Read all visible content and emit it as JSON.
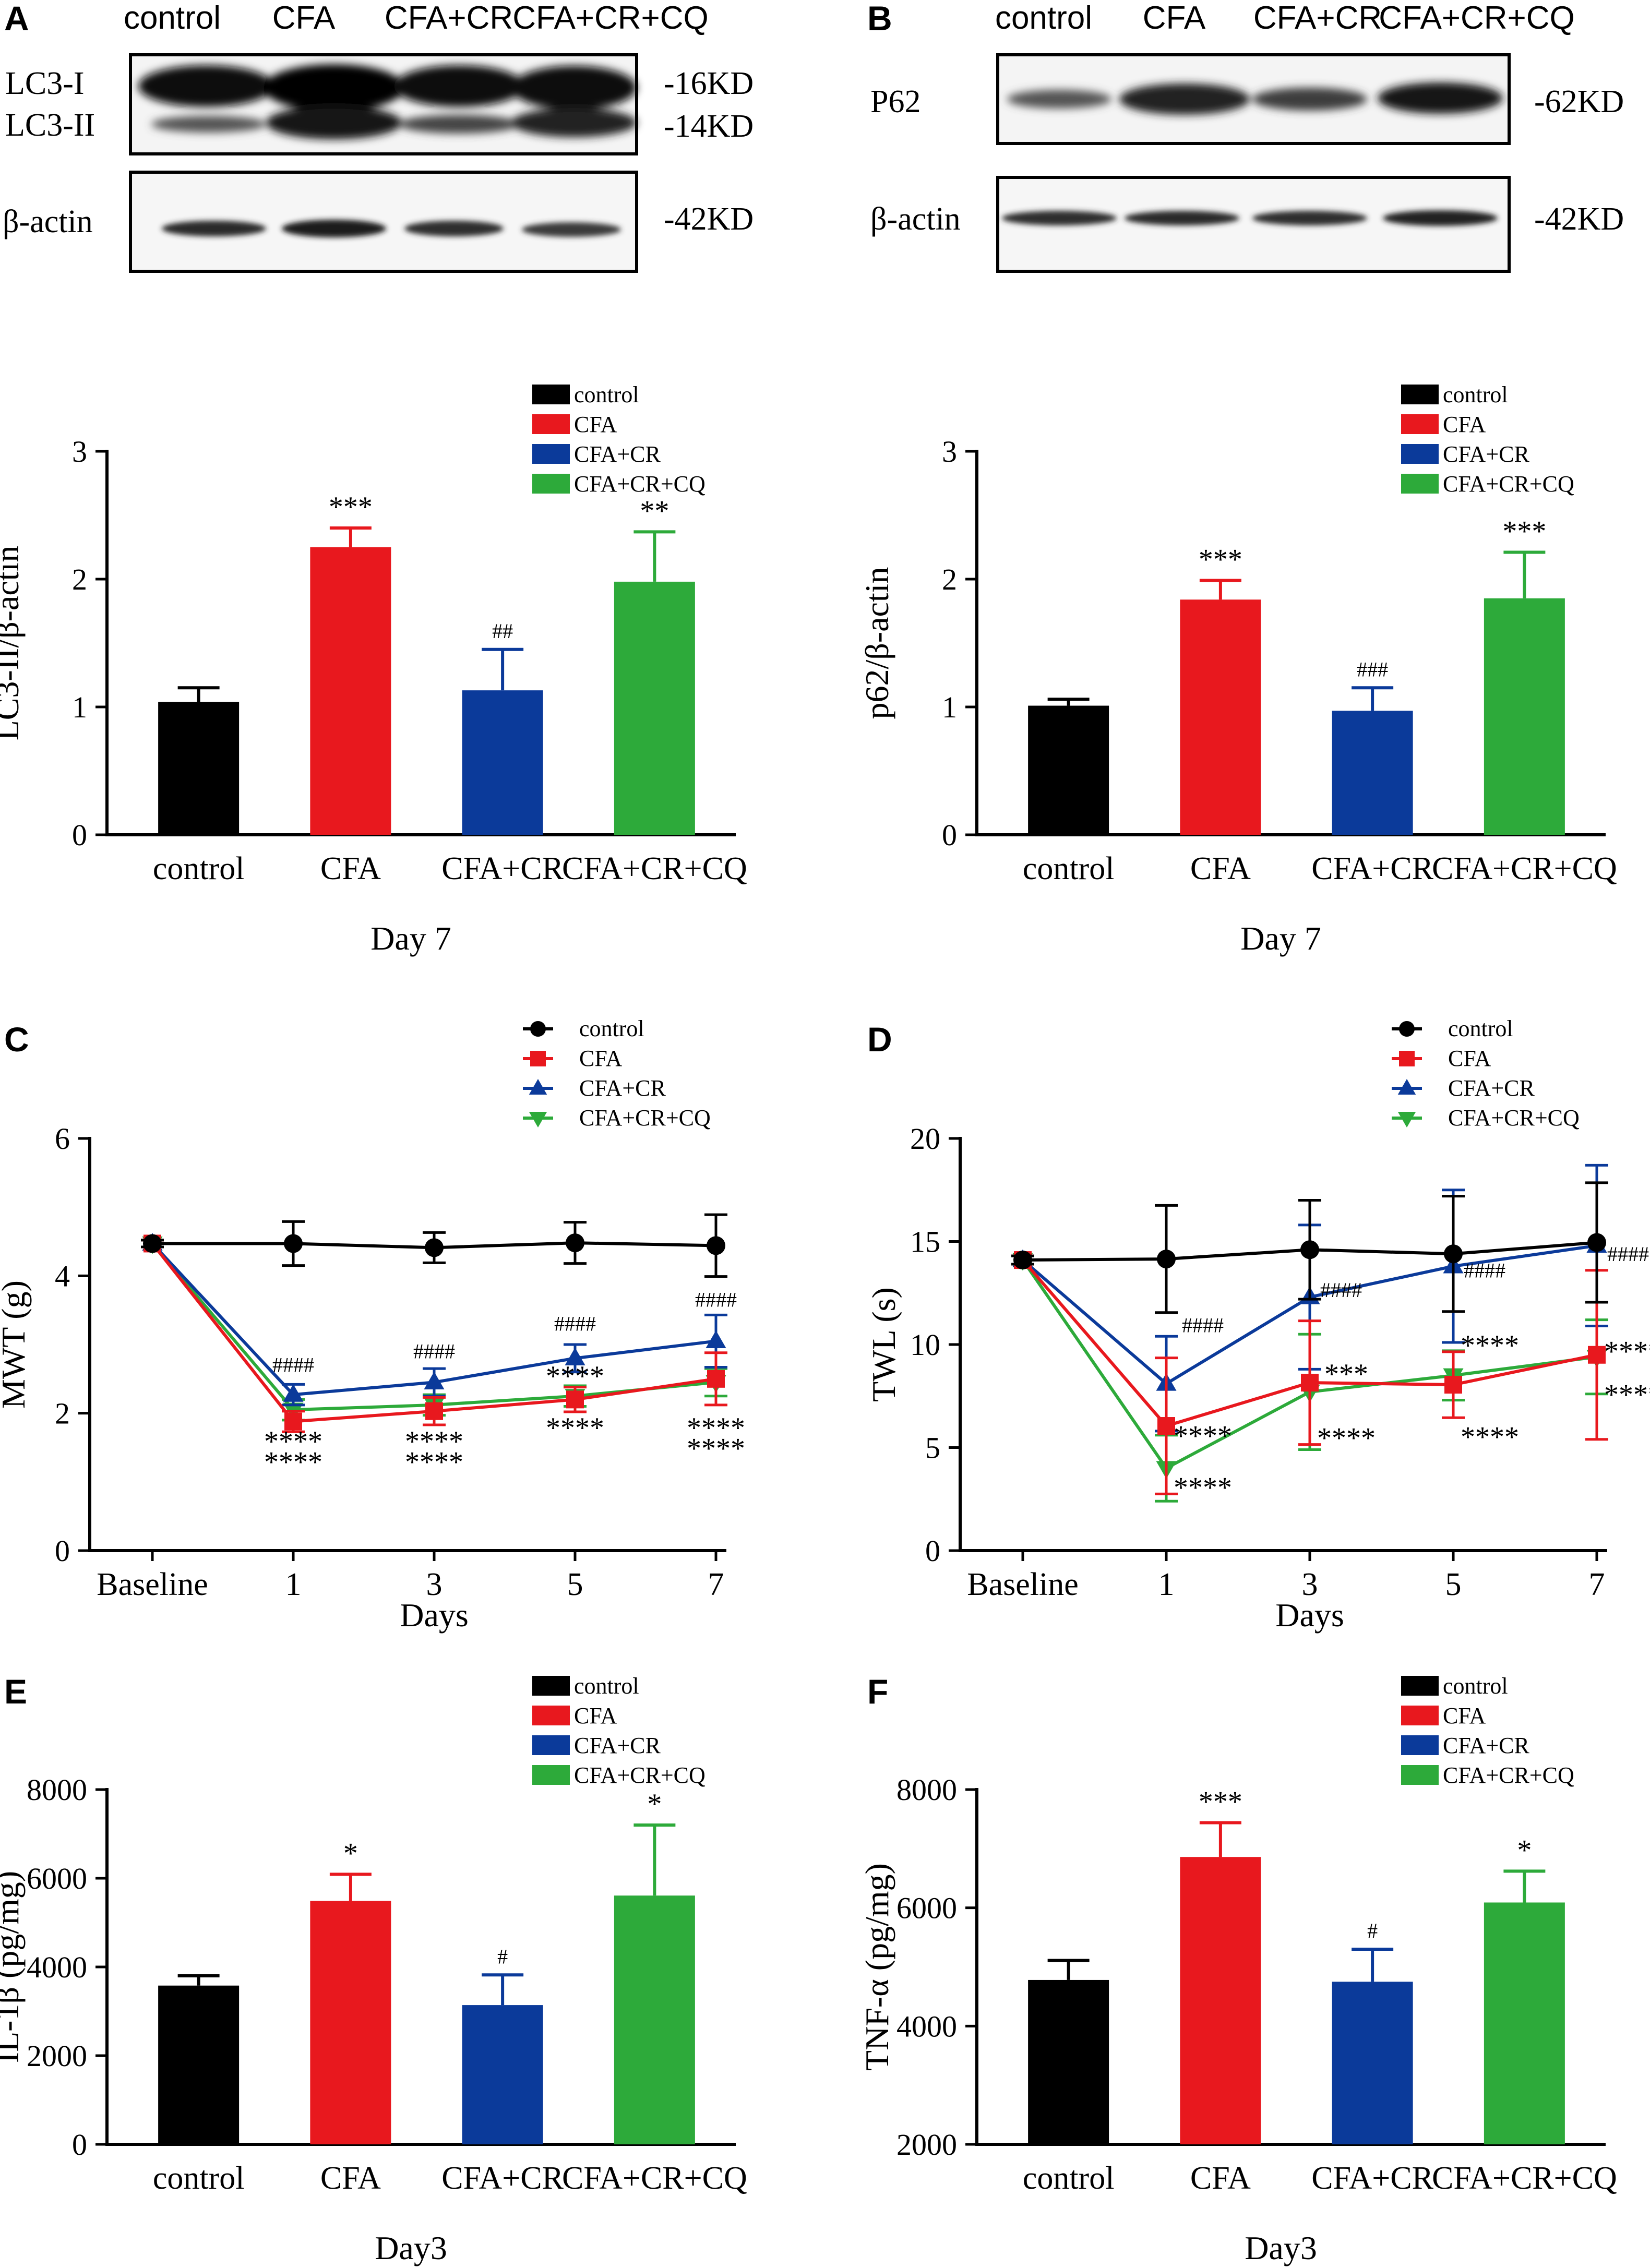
{
  "colors": {
    "control": "#000000",
    "CFA": "#e8181e",
    "CFA+CR": "#0b3a9a",
    "CFA+CR+CQ": "#2daa3a"
  },
  "blots": [
    {
      "panel": "A",
      "lanes": [
        "control",
        "CFA",
        "CFA+CR",
        "CFA+CR+CQ"
      ],
      "top_labels": [
        "LC3-I",
        "LC3-II"
      ],
      "top_kd": [
        "-16KD",
        "-14KD"
      ],
      "bottom_label": "β-actin",
      "bottom_kd": "-42KD"
    },
    {
      "panel": "B",
      "lanes": [
        "control",
        "CFA",
        "CFA+CR",
        "CFA+CR+CQ"
      ],
      "top_labels": [
        "P62"
      ],
      "top_kd": [
        "-62KD"
      ],
      "bottom_label": "β-actin",
      "bottom_kd": "-42KD"
    }
  ],
  "chart_data": [
    {
      "panel": "A",
      "type": "bar",
      "categories": [
        "control",
        "CFA",
        "CFA+CR",
        "CFA+CR+CQ"
      ],
      "values": [
        1.04,
        2.25,
        1.13,
        1.98
      ],
      "errors": [
        0.11,
        0.15,
        0.32,
        0.39
      ],
      "annotations": [
        "",
        "***",
        "##",
        "**"
      ],
      "ylabel": "LC3-II/β-actin",
      "xlabel": "Day 7",
      "ylim": [
        0,
        3
      ],
      "yticks": [
        0,
        1,
        2,
        3
      ],
      "legend": [
        "control",
        "CFA",
        "CFA+CR",
        "CFA+CR+CQ"
      ]
    },
    {
      "panel": "B",
      "type": "bar",
      "categories": [
        "control",
        "CFA",
        "CFA+CR",
        "CFA+CR+CQ"
      ],
      "values": [
        1.01,
        1.84,
        0.97,
        1.85
      ],
      "errors": [
        0.05,
        0.15,
        0.18,
        0.36
      ],
      "annotations": [
        "",
        "***",
        "###",
        "***"
      ],
      "ylabel": "p62/β-actin",
      "xlabel": "Day 7",
      "ylim": [
        0,
        3
      ],
      "yticks": [
        0,
        1,
        2,
        3
      ],
      "legend": [
        "control",
        "CFA",
        "CFA+CR",
        "CFA+CR+CQ"
      ]
    },
    {
      "panel": "C",
      "type": "line",
      "x": [
        "Baseline",
        "1",
        "3",
        "5",
        "7"
      ],
      "series": [
        {
          "name": "control",
          "marker": "circle",
          "values": [
            4.47,
            4.47,
            4.41,
            4.48,
            4.44
          ],
          "errors": [
            0.05,
            0.32,
            0.22,
            0.3,
            0.45
          ]
        },
        {
          "name": "CFA",
          "marker": "square",
          "values": [
            4.47,
            1.88,
            2.03,
            2.2,
            2.5
          ],
          "errors": [
            0.05,
            0.15,
            0.2,
            0.18,
            0.38
          ]
        },
        {
          "name": "CFA+CR",
          "marker": "triangle",
          "values": [
            4.47,
            2.27,
            2.45,
            2.8,
            3.05
          ],
          "errors": [
            0.05,
            0.15,
            0.2,
            0.2,
            0.38
          ]
        },
        {
          "name": "CFA+CR+CQ",
          "marker": "triangle-down",
          "values": [
            4.47,
            2.05,
            2.12,
            2.25,
            2.45
          ],
          "errors": [
            0.05,
            0.15,
            0.15,
            0.15,
            0.2
          ]
        }
      ],
      "annotations": [
        {
          "x": "1",
          "y": 2.6,
          "text": "####"
        },
        {
          "x": "1",
          "y": 1.45,
          "text": "****"
        },
        {
          "x": "1",
          "y": 1.15,
          "text": "****"
        },
        {
          "x": "3",
          "y": 2.8,
          "text": "####"
        },
        {
          "x": "3",
          "y": 1.45,
          "text": "****"
        },
        {
          "x": "3",
          "y": 1.15,
          "text": "****"
        },
        {
          "x": "5",
          "y": 3.2,
          "text": "####"
        },
        {
          "x": "5",
          "y": 2.4,
          "text": "****"
        },
        {
          "x": "5",
          "y": 1.65,
          "text": "****"
        },
        {
          "x": "7",
          "y": 3.55,
          "text": "####"
        },
        {
          "x": "7",
          "y": 1.65,
          "text": "****"
        },
        {
          "x": "7",
          "y": 1.35,
          "text": "****"
        }
      ],
      "ylabel": "MWT (g)",
      "xlabel": "Days",
      "ylim": [
        0,
        6
      ],
      "yticks": [
        0,
        2,
        4,
        6
      ],
      "legend": [
        "control",
        "CFA",
        "CFA+CR",
        "CFA+CR+CQ"
      ]
    },
    {
      "panel": "D",
      "type": "line",
      "x": [
        "Baseline",
        "1",
        "3",
        "5",
        "7"
      ],
      "series": [
        {
          "name": "control",
          "marker": "circle",
          "values": [
            14.1,
            14.15,
            14.6,
            14.4,
            14.95
          ],
          "errors": [
            0.2,
            2.6,
            2.4,
            2.8,
            2.9
          ]
        },
        {
          "name": "CFA",
          "marker": "square",
          "values": [
            14.1,
            6.05,
            8.15,
            8.05,
            9.5
          ],
          "errors": [
            0.2,
            3.3,
            3.0,
            1.6,
            4.1
          ]
        },
        {
          "name": "CFA+CR",
          "marker": "triangle",
          "values": [
            14.1,
            8.1,
            12.3,
            13.8,
            14.8
          ],
          "errors": [
            0.2,
            2.3,
            3.5,
            3.7,
            3.9
          ]
        },
        {
          "name": "CFA+CR+CQ",
          "marker": "triangle-down",
          "values": [
            14.1,
            4.0,
            7.7,
            8.5,
            9.4
          ],
          "errors": [
            0.2,
            1.6,
            2.8,
            1.2,
            1.8
          ]
        }
      ],
      "annotations": [
        {
          "x": "1",
          "y": 10.6,
          "text": "####"
        },
        {
          "x": "1",
          "y": 5.1,
          "text": "****"
        },
        {
          "x": "1",
          "y": 2.6,
          "text": "****"
        },
        {
          "x": "3",
          "y": 12.3,
          "text": "####"
        },
        {
          "x": "3",
          "y": 8.1,
          "text": "***"
        },
        {
          "x": "3",
          "y": 5.0,
          "text": "****"
        },
        {
          "x": "5",
          "y": 13.25,
          "text": "####"
        },
        {
          "x": "5",
          "y": 9.5,
          "text": "****"
        },
        {
          "x": "5",
          "y": 5.05,
          "text": "****"
        },
        {
          "x": "7",
          "y": 14.05,
          "text": "####"
        },
        {
          "x": "7",
          "y": 9.2,
          "text": "****"
        },
        {
          "x": "7",
          "y": 7.1,
          "text": "****"
        }
      ],
      "ylabel": "TWL (s)",
      "xlabel": "Days",
      "ylim": [
        0,
        20
      ],
      "yticks": [
        0,
        5,
        10,
        15,
        20
      ],
      "legend": [
        "control",
        "CFA",
        "CFA+CR",
        "CFA+CR+CQ"
      ]
    },
    {
      "panel": "E",
      "type": "bar",
      "categories": [
        "control",
        "CFA",
        "CFA+CR",
        "CFA+CR+CQ"
      ],
      "values": [
        3580,
        5490,
        3140,
        5610
      ],
      "errors": [
        220,
        600,
        680,
        1590
      ],
      "annotations": [
        "",
        "*",
        "#",
        "*"
      ],
      "ylabel": "IL-1β (pg/mg)",
      "xlabel": "Day3",
      "ylim": [
        0,
        8000
      ],
      "yticks": [
        0,
        2000,
        4000,
        6000,
        8000
      ],
      "legend": [
        "control",
        "CFA",
        "CFA+CR",
        "CFA+CR+CQ"
      ]
    },
    {
      "panel": "F",
      "type": "bar",
      "categories": [
        "control",
        "CFA",
        "CFA+CR",
        "CFA+CR+CQ"
      ],
      "values": [
        4780,
        6860,
        4750,
        6090
      ],
      "errors": [
        330,
        580,
        550,
        530
      ],
      "annotations": [
        "",
        "***",
        "#",
        "*"
      ],
      "ylabel": "TNF-α (pg/mg)",
      "xlabel": "Day3",
      "ylim": [
        2000,
        8000
      ],
      "yticks": [
        2000,
        4000,
        6000,
        8000
      ],
      "legend": [
        "control",
        "CFA",
        "CFA+CR",
        "CFA+CR+CQ"
      ]
    }
  ]
}
